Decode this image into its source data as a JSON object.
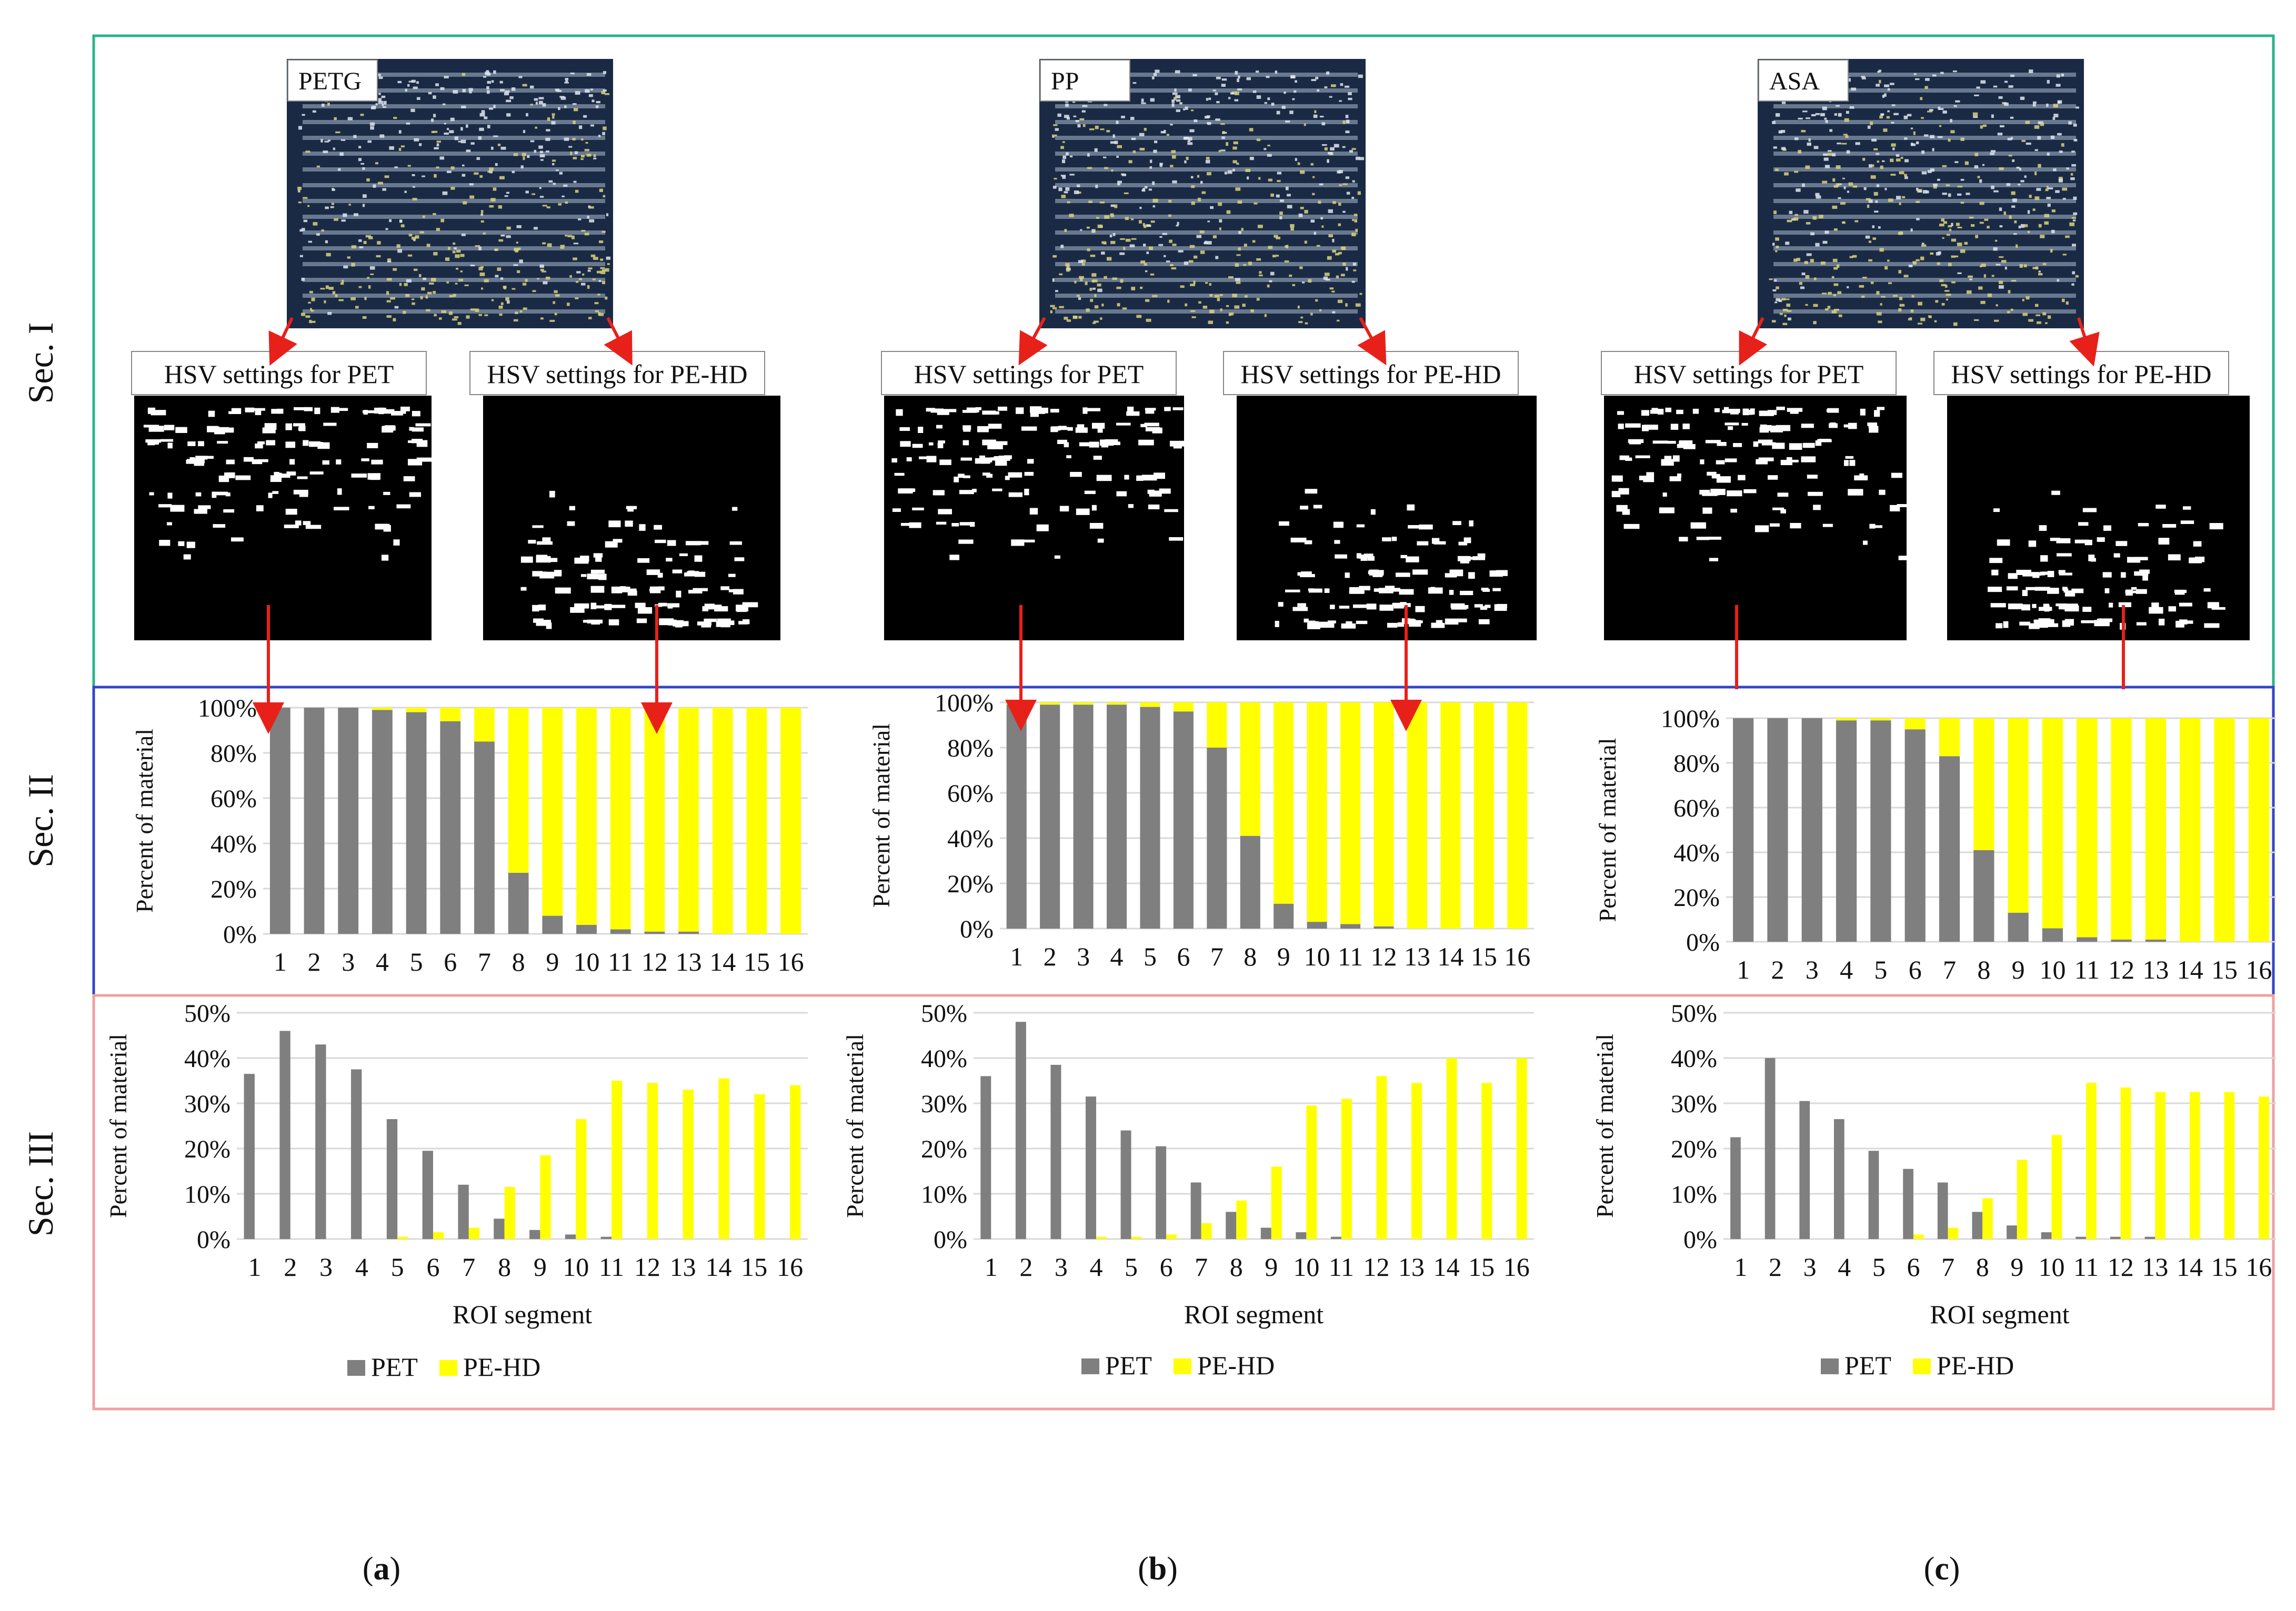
{
  "figure": {
    "section_labels": [
      "Sec. I",
      "Sec. II",
      "Sec. III"
    ],
    "panel_letters": [
      "a",
      "b",
      "c"
    ],
    "colors": {
      "sec1_border": "#2bb38a",
      "sec2_border": "#3345c8",
      "sec3_border": "#f0a0a0",
      "arrow": "#e8201a",
      "pet": "#7f7f7f",
      "pehd": "#ffff00",
      "grid": "#d9d9d9",
      "photo_bg": "#1b2a44",
      "photo_stripe": "#a8b8cc",
      "photo_particle": "#d9d27a"
    },
    "icons": [
      "red-arrow-icon"
    ]
  },
  "panels": [
    {
      "photo_label": "PETG",
      "hsv_pet_label": "HSV settings for PET",
      "hsv_pehd_label": "HSV settings for PE-HD",
      "x_axis_label": "ROI segment",
      "legend": [
        "PET",
        "PE-HD"
      ]
    },
    {
      "photo_label": "PP",
      "hsv_pet_label": "HSV settings for PET",
      "hsv_pehd_label": "HSV settings for PE-HD",
      "x_axis_label": "ROI segment",
      "legend": [
        "PET",
        "PE-HD"
      ]
    },
    {
      "photo_label": "ASA",
      "hsv_pet_label": "HSV settings for PET",
      "hsv_pehd_label": "HSV settings for PE-HD",
      "x_axis_label": "ROI segment",
      "legend": [
        "PET",
        "PE-HD"
      ]
    }
  ],
  "chart_data": [
    {
      "type": "bar",
      "stacked": true,
      "section": "Sec. II",
      "panel": "a",
      "categories": [
        "1",
        "2",
        "3",
        "4",
        "5",
        "6",
        "7",
        "8",
        "9",
        "10",
        "11",
        "12",
        "13",
        "14",
        "15",
        "16"
      ],
      "series": [
        {
          "name": "PET",
          "values": [
            100,
            100,
            100,
            99,
            98,
            94,
            85,
            27,
            8,
            4,
            2,
            1,
            1,
            0,
            0,
            0
          ]
        },
        {
          "name": "PE-HD",
          "values": [
            0,
            0,
            0,
            1,
            2,
            6,
            15,
            73,
            92,
            96,
            98,
            99,
            99,
            100,
            100,
            100
          ]
        }
      ],
      "ylabel": "Percent of material",
      "yticks": [
        "0%",
        "20%",
        "40%",
        "60%",
        "80%",
        "100%"
      ],
      "ylim": [
        0,
        100
      ],
      "grid": true
    },
    {
      "type": "bar",
      "stacked": true,
      "section": "Sec. II",
      "panel": "b",
      "categories": [
        "1",
        "2",
        "3",
        "4",
        "5",
        "6",
        "7",
        "8",
        "9",
        "10",
        "11",
        "12",
        "13",
        "14",
        "15",
        "16"
      ],
      "series": [
        {
          "name": "PET",
          "values": [
            99,
            99,
            99,
            99,
            98,
            96,
            80,
            41,
            11,
            3,
            2,
            1,
            0,
            0,
            0,
            0
          ]
        },
        {
          "name": "PE-HD",
          "values": [
            1,
            1,
            1,
            1,
            2,
            4,
            20,
            59,
            89,
            97,
            98,
            99,
            100,
            100,
            100,
            100
          ]
        }
      ],
      "ylabel": "Percent of material",
      "yticks": [
        "0%",
        "20%",
        "40%",
        "60%",
        "80%",
        "100%"
      ],
      "ylim": [
        0,
        100
      ],
      "grid": true
    },
    {
      "type": "bar",
      "stacked": true,
      "section": "Sec. II",
      "panel": "c",
      "categories": [
        "1",
        "2",
        "3",
        "4",
        "5",
        "6",
        "7",
        "8",
        "9",
        "10",
        "11",
        "12",
        "13",
        "14",
        "15",
        "16"
      ],
      "series": [
        {
          "name": "PET",
          "values": [
            100,
            100,
            100,
            99,
            99,
            95,
            83,
            41,
            13,
            6,
            2,
            1,
            1,
            0,
            0,
            0
          ]
        },
        {
          "name": "PE-HD",
          "values": [
            0,
            0,
            0,
            1,
            1,
            5,
            17,
            59,
            87,
            94,
            98,
            99,
            99,
            100,
            100,
            100
          ]
        }
      ],
      "ylabel": "Percent of material",
      "yticks": [
        "0%",
        "20%",
        "40%",
        "60%",
        "80%",
        "100%"
      ],
      "ylim": [
        0,
        100
      ],
      "grid": true
    },
    {
      "type": "bar",
      "stacked": false,
      "section": "Sec. III",
      "panel": "a",
      "categories": [
        "1",
        "2",
        "3",
        "4",
        "5",
        "6",
        "7",
        "8",
        "9",
        "10",
        "11",
        "12",
        "13",
        "14",
        "15",
        "16"
      ],
      "series": [
        {
          "name": "PET",
          "values": [
            36.5,
            46,
            43,
            37.5,
            26.5,
            19.5,
            12,
            4.5,
            2,
            1,
            0.5,
            0,
            0,
            0,
            0,
            0
          ]
        },
        {
          "name": "PE-HD",
          "values": [
            0,
            0,
            0,
            0,
            0.5,
            1.5,
            2.5,
            11.5,
            18.5,
            26.5,
            35,
            34.5,
            33,
            35.5,
            32,
            34
          ]
        }
      ],
      "xlabel": "ROI segment",
      "ylabel": "Percent of material",
      "yticks": [
        "0%",
        "10%",
        "20%",
        "30%",
        "40%",
        "50%"
      ],
      "ylim": [
        0,
        50
      ],
      "grid": true
    },
    {
      "type": "bar",
      "stacked": false,
      "section": "Sec. III",
      "panel": "b",
      "categories": [
        "1",
        "2",
        "3",
        "4",
        "5",
        "6",
        "7",
        "8",
        "9",
        "10",
        "11",
        "12",
        "13",
        "14",
        "15",
        "16"
      ],
      "series": [
        {
          "name": "PET",
          "values": [
            36,
            48,
            38.5,
            31.5,
            24,
            20.5,
            12.5,
            6,
            2.5,
            1.5,
            0.5,
            0,
            0,
            0,
            0,
            0
          ]
        },
        {
          "name": "PE-HD",
          "values": [
            0,
            0,
            0,
            0.5,
            0.5,
            1,
            3.5,
            8.5,
            16,
            29.5,
            31,
            36,
            34.5,
            40,
            34.5,
            40
          ]
        }
      ],
      "xlabel": "ROI segment",
      "ylabel": "Percent of material",
      "yticks": [
        "0%",
        "10%",
        "20%",
        "30%",
        "40%",
        "50%"
      ],
      "ylim": [
        0,
        50
      ],
      "grid": true
    },
    {
      "type": "bar",
      "stacked": false,
      "section": "Sec. III",
      "panel": "c",
      "categories": [
        "1",
        "2",
        "3",
        "4",
        "5",
        "6",
        "7",
        "8",
        "9",
        "10",
        "11",
        "12",
        "13",
        "14",
        "15",
        "16"
      ],
      "series": [
        {
          "name": "PET",
          "values": [
            22.5,
            40,
            30.5,
            26.5,
            19.5,
            15.5,
            12.5,
            6,
            3,
            1.5,
            0.5,
            0.5,
            0.5,
            0,
            0,
            0
          ]
        },
        {
          "name": "PE-HD",
          "values": [
            0,
            0,
            0,
            0,
            0,
            1,
            2.5,
            9,
            17.5,
            23,
            34.5,
            33.5,
            32.5,
            32.5,
            32.5,
            31.5
          ]
        }
      ],
      "xlabel": "ROI segment",
      "ylabel": "Percent of material",
      "yticks": [
        "0%",
        "10%",
        "20%",
        "30%",
        "40%",
        "50%"
      ],
      "ylim": [
        0,
        50
      ],
      "grid": true
    }
  ]
}
